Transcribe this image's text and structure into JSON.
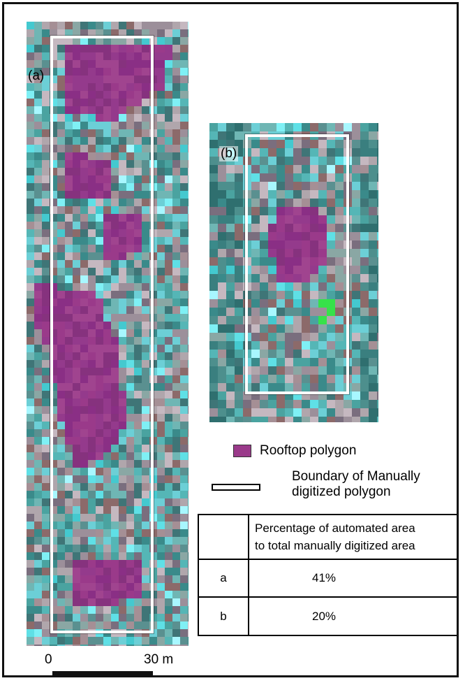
{
  "panels": [
    {
      "label": "(a)"
    },
    {
      "label": "(b)"
    }
  ],
  "legend": {
    "rooftop_label": "Rooftop polygon",
    "boundary_label_line1": "Boundary of Manually",
    "boundary_label_line2": "digitized polygon",
    "rooftop_color": "#9a3a8a"
  },
  "table": {
    "header_line1": "Percentage of automated area",
    "header_line2": "to total manually digitized area",
    "rows": [
      {
        "label": "a",
        "value": "41%"
      },
      {
        "label": "b",
        "value": "20%"
      }
    ]
  },
  "scale_bar": {
    "start_label": "0",
    "end_label": "30 m"
  }
}
